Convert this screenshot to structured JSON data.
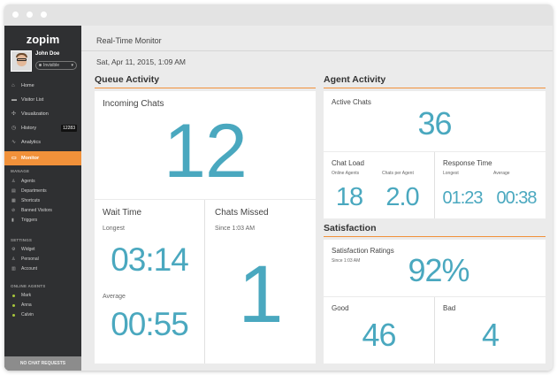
{
  "sidebar": {
    "logo": "zopim",
    "user": {
      "name": "John Doe",
      "status": "Invisible"
    },
    "nav": [
      {
        "label": "Home",
        "icon": "home-icon"
      },
      {
        "label": "Visitor List",
        "icon": "chat-bubble-icon"
      },
      {
        "label": "Visualization",
        "icon": "network-icon"
      },
      {
        "label": "History",
        "icon": "clock-icon",
        "badge": "12283"
      },
      {
        "label": "Analytics",
        "icon": "line-chart-icon"
      },
      {
        "label": "Monitor",
        "icon": "monitor-icon",
        "active": true
      }
    ],
    "manage_label": "MANAGE",
    "manage": [
      "Agents",
      "Departments",
      "Shortcuts",
      "Banned Visitors",
      "Triggers"
    ],
    "settings_label": "SETTINGS",
    "settings": [
      "Widget",
      "Personal",
      "Account"
    ],
    "online_label": "ONLINE AGENTS",
    "online": [
      "Mark",
      "Anna",
      "Calvin"
    ],
    "no_chat": "NO CHAT REQUESTS"
  },
  "header": {
    "title": "Real-Time Monitor",
    "date": "Sat, Apr 11, 2015, 1:09 AM"
  },
  "queue": {
    "title": "Queue Activity",
    "incoming": {
      "label": "Incoming Chats",
      "value": "12"
    },
    "wait": {
      "label": "Wait Time",
      "longest_label": "Longest",
      "longest": "03:14",
      "average_label": "Average",
      "average": "00:55"
    },
    "missed": {
      "label": "Chats Missed",
      "since": "Since 1:03 AM",
      "value": "1"
    }
  },
  "agent": {
    "title": "Agent Activity",
    "active": {
      "label": "Active Chats",
      "value": "36"
    },
    "load": {
      "label": "Chat Load",
      "online_label": "Online Agents",
      "online": "18",
      "per_agent_label": "Chats per Agent",
      "per_agent": "2.0"
    },
    "response": {
      "label": "Response Time",
      "longest_label": "Longest",
      "longest": "01:23",
      "average_label": "Average",
      "average": "00:38"
    }
  },
  "satisfaction": {
    "title": "Satisfaction",
    "ratings": {
      "label": "Satisfaction Ratings",
      "since": "Since 1:03 AM",
      "value": "92%"
    },
    "good": {
      "label": "Good",
      "value": "46"
    },
    "bad": {
      "label": "Bad",
      "value": "4"
    }
  },
  "colors": {
    "accent": "#f1913a",
    "number": "#4aa8bf",
    "sidebar": "#2f3032"
  }
}
